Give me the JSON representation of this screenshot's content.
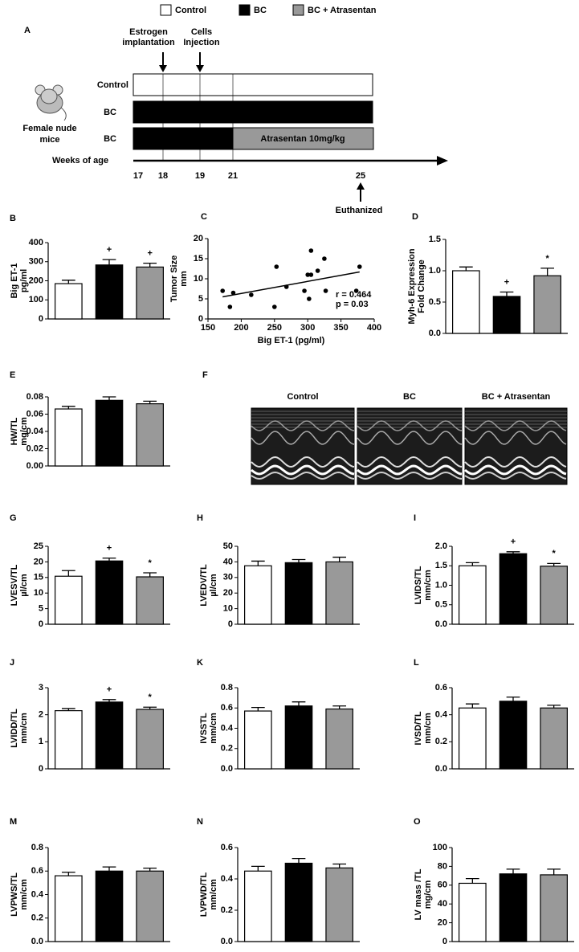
{
  "legend": {
    "items": [
      {
        "label": "Control",
        "color": "#ffffff"
      },
      {
        "label": "BC",
        "color": "#000000"
      },
      {
        "label": "BC + Atrasentan",
        "color": "#999999"
      }
    ]
  },
  "panel_a": {
    "label": "A",
    "subject": [
      "Female nude",
      "mice"
    ],
    "rows": [
      "Control",
      "BC",
      "BC"
    ],
    "treatment": "Atrasentan 10mg/kg",
    "events": [
      [
        "Estrogen",
        "implantation"
      ],
      [
        "Cells",
        "Injection"
      ]
    ],
    "axis_label": "Weeks of age",
    "weeks": [
      17,
      18,
      19,
      21,
      25
    ],
    "endpoint": "Euthanized"
  },
  "panel_f": {
    "label": "F",
    "images": [
      "Control",
      "BC",
      "BC + Atrasentan"
    ]
  },
  "chart_data": [
    {
      "type": "bar",
      "label": "B",
      "ylabel": [
        "Big ET-1",
        "pg/ml"
      ],
      "values": [
        185,
        283,
        272
      ],
      "errors": [
        18,
        28,
        20
      ],
      "markers": [
        null,
        "+",
        "+"
      ],
      "ylim": [
        0,
        400
      ],
      "yticks": [
        0,
        100,
        200,
        300,
        400
      ]
    },
    {
      "type": "scatter",
      "label": "C",
      "xlabel": "Big ET-1 (pg/ml)",
      "ylabel": [
        "Tumor Size",
        "mm"
      ],
      "x": [
        172,
        183,
        188,
        215,
        250,
        253,
        268,
        295,
        300,
        302,
        305,
        305,
        315,
        325,
        327,
        373,
        378
      ],
      "values": [
        7,
        3,
        6.5,
        6,
        3,
        13,
        8,
        7,
        11,
        5,
        11,
        17,
        12,
        15,
        7,
        7,
        13
      ],
      "xlim": [
        150,
        400
      ],
      "xticks": [
        150,
        200,
        250,
        300,
        350,
        400
      ],
      "ylim": [
        0,
        20
      ],
      "yticks": [
        0,
        5,
        10,
        15,
        20
      ],
      "fit": {
        "x": [
          172,
          378
        ],
        "y": [
          5.5,
          11.7
        ]
      },
      "annotations": [
        "r = 0.464",
        "p = 0.03"
      ]
    },
    {
      "type": "bar",
      "label": "D",
      "ylabel": [
        "Myh-6 Expression",
        "Fold Change"
      ],
      "values": [
        1.0,
        0.59,
        0.92
      ],
      "errors": [
        0.06,
        0.07,
        0.12
      ],
      "markers": [
        null,
        "+",
        "*"
      ],
      "ylim": [
        0,
        1.5
      ],
      "yticks": [
        {
          "value": 0,
          "label": "0.0"
        },
        {
          "value": 0.5,
          "label": "0.5"
        },
        {
          "value": 1,
          "label": "1.0"
        },
        {
          "value": 1.5,
          "label": "1.5"
        }
      ]
    },
    {
      "type": "bar",
      "label": "E",
      "ylabel": [
        "HW/TL",
        "mg/cm"
      ],
      "values": [
        0.066,
        0.076,
        0.072
      ],
      "errors": [
        0.003,
        0.004,
        0.003
      ],
      "markers": [
        null,
        null,
        null
      ],
      "ylim": [
        0,
        0.08
      ],
      "yticks": [
        {
          "value": 0,
          "label": "0.00"
        },
        {
          "value": 0.02,
          "label": "0.02"
        },
        {
          "value": 0.04,
          "label": "0.04"
        },
        {
          "value": 0.06,
          "label": "0.06"
        },
        {
          "value": 0.08,
          "label": "0.08"
        }
      ]
    },
    {
      "type": "bar",
      "label": "G",
      "ylabel": [
        "LVESV/TL",
        "µl/cm"
      ],
      "values": [
        15.4,
        20.3,
        15.2
      ],
      "errors": [
        1.8,
        0.9,
        1.3
      ],
      "markers": [
        null,
        "+",
        "*"
      ],
      "ylim": [
        0,
        25
      ],
      "yticks": [
        0,
        5,
        10,
        15,
        20,
        25
      ]
    },
    {
      "type": "bar",
      "label": "H",
      "ylabel": [
        "LVEDV/TL",
        "µl/cm"
      ],
      "values": [
        37.5,
        39.5,
        40
      ],
      "errors": [
        3,
        2,
        3
      ],
      "markers": [
        null,
        null,
        null
      ],
      "ylim": [
        0,
        50
      ],
      "yticks": [
        0,
        10,
        20,
        30,
        40,
        50
      ]
    },
    {
      "type": "bar",
      "label": "I",
      "ylabel": [
        "LVIDS/TL",
        "mm/cm"
      ],
      "values": [
        1.5,
        1.81,
        1.49
      ],
      "errors": [
        0.08,
        0.05,
        0.07
      ],
      "markers": [
        null,
        "+",
        "*"
      ],
      "ylim": [
        0,
        2
      ],
      "yticks": [
        {
          "value": 0,
          "label": "0.0"
        },
        {
          "value": 0.5,
          "label": "0.5"
        },
        {
          "value": 1,
          "label": "1.0"
        },
        {
          "value": 1.5,
          "label": "1.5"
        },
        {
          "value": 2,
          "label": "2.0"
        }
      ]
    },
    {
      "type": "bar",
      "label": "J",
      "ylabel": [
        "LVIDD/TL",
        "mm/cm"
      ],
      "values": [
        2.15,
        2.47,
        2.2
      ],
      "errors": [
        0.08,
        0.09,
        0.08
      ],
      "markers": [
        null,
        "+",
        "*"
      ],
      "ylim": [
        0,
        3
      ],
      "yticks": [
        0,
        1,
        2,
        3
      ]
    },
    {
      "type": "bar",
      "label": "K",
      "ylabel": [
        "IVSSTL",
        "mm/cm"
      ],
      "values": [
        0.57,
        0.62,
        0.59
      ],
      "errors": [
        0.035,
        0.04,
        0.03
      ],
      "markers": [
        null,
        null,
        null
      ],
      "ylim": [
        0,
        0.8
      ],
      "yticks": [
        {
          "value": 0,
          "label": "0.0"
        },
        {
          "value": 0.2,
          "label": "0.2"
        },
        {
          "value": 0.4,
          "label": "0.4"
        },
        {
          "value": 0.6,
          "label": "0.6"
        },
        {
          "value": 0.8,
          "label": "0.8"
        }
      ]
    },
    {
      "type": "bar",
      "label": "L",
      "ylabel": [
        "IVSD/TL",
        "mm/cm"
      ],
      "values": [
        0.45,
        0.5,
        0.45
      ],
      "errors": [
        0.03,
        0.03,
        0.02
      ],
      "markers": [
        null,
        null,
        null
      ],
      "ylim": [
        0,
        0.6
      ],
      "yticks": [
        {
          "value": 0,
          "label": "0.0"
        },
        {
          "value": 0.2,
          "label": "0.2"
        },
        {
          "value": 0.4,
          "label": "0.4"
        },
        {
          "value": 0.6,
          "label": "0.6"
        }
      ]
    },
    {
      "type": "bar",
      "label": "M",
      "ylabel": [
        "LVPWS/TL",
        "mm/cm"
      ],
      "values": [
        0.56,
        0.6,
        0.6
      ],
      "errors": [
        0.03,
        0.035,
        0.025
      ],
      "markers": [
        null,
        null,
        null
      ],
      "ylim": [
        0,
        0.8
      ],
      "yticks": [
        {
          "value": 0,
          "label": "0.0"
        },
        {
          "value": 0.2,
          "label": "0.2"
        },
        {
          "value": 0.4,
          "label": "0.4"
        },
        {
          "value": 0.6,
          "label": "0.6"
        },
        {
          "value": 0.8,
          "label": "0.8"
        }
      ]
    },
    {
      "type": "bar",
      "label": "N",
      "ylabel": [
        "LVPWD/TL",
        "mm/cm"
      ],
      "values": [
        0.45,
        0.5,
        0.47
      ],
      "errors": [
        0.03,
        0.03,
        0.025
      ],
      "markers": [
        null,
        null,
        null
      ],
      "ylim": [
        0,
        0.6
      ],
      "yticks": [
        {
          "value": 0,
          "label": "0.0"
        },
        {
          "value": 0.2,
          "label": "0.2"
        },
        {
          "value": 0.4,
          "label": "0.4"
        },
        {
          "value": 0.6,
          "label": "0.6"
        }
      ]
    },
    {
      "type": "bar",
      "label": "O",
      "ylabel": [
        "LV mass /TL",
        "mg/cm"
      ],
      "values": [
        62,
        72,
        71
      ],
      "errors": [
        5,
        5,
        6
      ],
      "markers": [
        null,
        null,
        null
      ],
      "ylim": [
        0,
        100
      ],
      "yticks": [
        0,
        20,
        40,
        60,
        80,
        100
      ]
    }
  ]
}
